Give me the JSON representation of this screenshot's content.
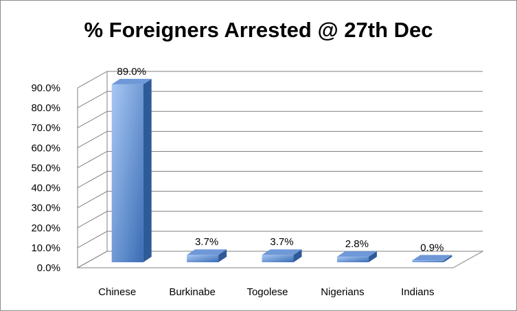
{
  "chart_data": {
    "type": "bar",
    "title": "% Foreigners Arrested @ 27th Dec",
    "categories": [
      "Chinese",
      "Burkinabe",
      "Togolese",
      "Nigerians",
      "Indians"
    ],
    "values": [
      89.0,
      3.7,
      3.7,
      2.8,
      0.9
    ],
    "data_labels": [
      "89.0%",
      "3.7%",
      "3.7%",
      "2.8%",
      "0.9%"
    ],
    "xlabel": "",
    "ylabel": "",
    "ylim": [
      0,
      90
    ],
    "y_ticks": [
      "0.0%",
      "10.0%",
      "20.0%",
      "30.0%",
      "40.0%",
      "50.0%",
      "60.0%",
      "70.0%",
      "80.0%",
      "90.0%"
    ],
    "grid": true,
    "legend": "none",
    "style": "3d-column"
  },
  "colors": {
    "bar_light": "#a9c8f5",
    "bar_dark": "#3a6db5",
    "bar_top": "#6f98d8",
    "bar_side": "#2f5a98",
    "grid": "#7f7f7f"
  }
}
